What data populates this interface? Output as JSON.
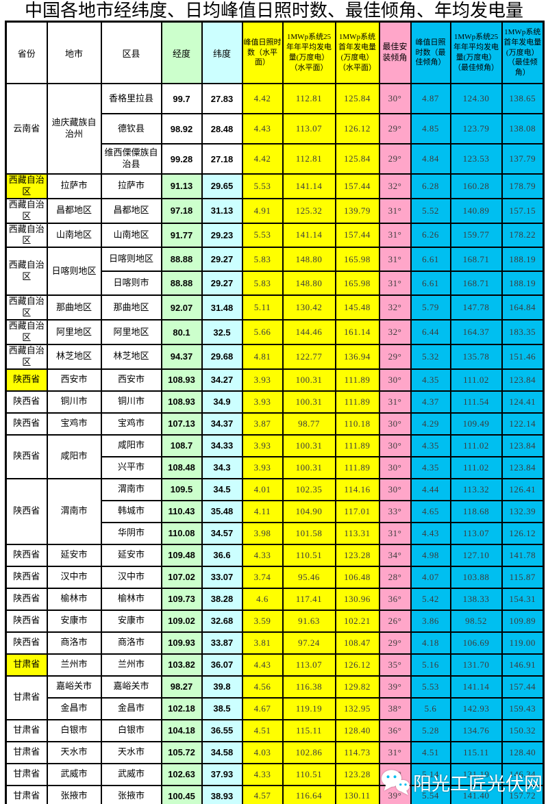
{
  "title": "中国各地市经纬度、日均峰值日照时数、最佳倾角、年均发电量",
  "watermark": {
    "text": "阳光工匠光伏网",
    "icon": "wechat-icon"
  },
  "colors": {
    "column_yellow": "#FFFF00",
    "longitude_green": "#CCFFCC",
    "latitude_cyan": "#CCFFFF",
    "tilt_pink": "#FFA6C9",
    "best_tilt_blue": "#00BFF0",
    "province_highlight": "#FFFF00",
    "border": "#000000"
  },
  "table": {
    "columns": [
      {
        "key": "province",
        "label": "省份",
        "bg": "#FFFFFF"
      },
      {
        "key": "city",
        "label": "地市",
        "bg": "#FFFFFF"
      },
      {
        "key": "county",
        "label": "区县",
        "bg": "#FFFFFF"
      },
      {
        "key": "lon",
        "label": "经度",
        "bg": "#CCFFCC"
      },
      {
        "key": "lat",
        "label": "纬度",
        "bg": "#CCFFFF"
      },
      {
        "key": "psh_h",
        "label": "峰值日照时数（水平面）",
        "bg": "#FFFF00"
      },
      {
        "key": "avg25_h",
        "label": "1MWp系统25年年平均发电量(万度电）（水平面）",
        "bg": "#FFFF00"
      },
      {
        "key": "first_h",
        "label": "1MWp系统首年发电量(万度电）（水平面）",
        "bg": "#FFFF00"
      },
      {
        "key": "tilt",
        "label": "最佳安装倾角",
        "bg": "#FFA6C9"
      },
      {
        "key": "psh_b",
        "label": "峰值日照时数（最佳倾角）",
        "bg": "#00BFF0"
      },
      {
        "key": "avg25_b",
        "label": "1MWp系统25年年平均发电量(万度电）（最佳倾角）",
        "bg": "#00BFF0"
      },
      {
        "key": "first_b",
        "label": "1MWp系统首年发电量(万度电）（最佳倾角）",
        "bg": "#00BFF0"
      }
    ],
    "rows": [
      {
        "province": {
          "text": "云南省",
          "span": 3
        },
        "city": {
          "text": "迪庆藏族自治州",
          "span": 3
        },
        "county": "香格里拉县",
        "lon": "99.7",
        "lat": "27.83",
        "geo_plain": true,
        "psh_h": "4.42",
        "avg25_h": "112.81",
        "first_h": "125.84",
        "tilt": "30°",
        "psh_b": "4.87",
        "avg25_b": "124.30",
        "first_b": "138.65"
      },
      {
        "county": "德钦县",
        "lon": "98.92",
        "lat": "28.48",
        "geo_plain": true,
        "psh_h": "4.43",
        "avg25_h": "113.07",
        "first_h": "126.12",
        "tilt": "29°",
        "psh_b": "4.85",
        "avg25_b": "123.79",
        "first_b": "138.08"
      },
      {
        "county": "维西傈僳族自治县",
        "lon": "99.28",
        "lat": "27.18",
        "geo_plain": true,
        "psh_h": "4.42",
        "avg25_h": "112.81",
        "first_h": "125.84",
        "tilt": "29°",
        "psh_b": "4.84",
        "avg25_b": "123.53",
        "first_b": "137.79"
      },
      {
        "province": {
          "text": "西藏自治区",
          "bg": "yellow"
        },
        "city": {
          "text": "拉萨市"
        },
        "county": "拉萨市",
        "lon": "91.13",
        "lat": "29.65",
        "psh_h": "5.53",
        "avg25_h": "141.14",
        "first_h": "157.44",
        "tilt": "32°",
        "psh_b": "6.28",
        "avg25_b": "160.28",
        "first_b": "178.79"
      },
      {
        "province": {
          "text": "西藏自治区"
        },
        "city": {
          "text": "昌都地区"
        },
        "county": "昌都地区",
        "lon": "97.18",
        "lat": "31.13",
        "psh_h": "4.91",
        "avg25_h": "125.32",
        "first_h": "139.79",
        "tilt": "31°",
        "psh_b": "5.52",
        "avg25_b": "140.89",
        "first_b": "157.15"
      },
      {
        "province": {
          "text": "西藏自治区"
        },
        "city": {
          "text": "山南地区"
        },
        "county": "山南地区",
        "lon": "91.77",
        "lat": "29.23",
        "psh_h": "5.53",
        "avg25_h": "141.14",
        "first_h": "157.44",
        "tilt": "31°",
        "psh_b": "6.26",
        "avg25_b": "159.77",
        "first_b": "178.22"
      },
      {
        "province": {
          "text": "西藏自治区",
          "span": 2
        },
        "city": {
          "text": "日喀则地区",
          "span": 2
        },
        "county": "日喀则地区",
        "lon": "88.88",
        "lat": "29.27",
        "psh_h": "5.83",
        "avg25_h": "148.80",
        "first_h": "165.98",
        "tilt": "31°",
        "psh_b": "6.61",
        "avg25_b": "168.71",
        "first_b": "188.19"
      },
      {
        "county": "日喀则市",
        "lon": "88.88",
        "lat": "29.27",
        "psh_h": "5.83",
        "avg25_h": "148.80",
        "first_h": "165.98",
        "tilt": "31°",
        "psh_b": "6.61",
        "avg25_b": "168.71",
        "first_b": "188.19"
      },
      {
        "province": {
          "text": "西藏自治区"
        },
        "city": {
          "text": "那曲地区"
        },
        "county": "那曲地区",
        "lon": "92.07",
        "lat": "31.48",
        "psh_h": "5.11",
        "avg25_h": "130.42",
        "first_h": "145.48",
        "tilt": "32°",
        "psh_b": "5.79",
        "avg25_b": "147.78",
        "first_b": "164.84"
      },
      {
        "province": {
          "text": "西藏自治区"
        },
        "city": {
          "text": "阿里地区"
        },
        "county": "阿里地区",
        "lon": "80.1",
        "lat": "32.5",
        "psh_h": "5.66",
        "avg25_h": "144.46",
        "first_h": "161.14",
        "tilt": "32°",
        "psh_b": "6.44",
        "avg25_b": "164.37",
        "first_b": "183.35"
      },
      {
        "province": {
          "text": "西藏自治区"
        },
        "city": {
          "text": "林芝地区"
        },
        "county": "林芝地区",
        "lon": "94.37",
        "lat": "29.68",
        "psh_h": "4.81",
        "avg25_h": "122.77",
        "first_h": "136.94",
        "tilt": "29°",
        "psh_b": "5.32",
        "avg25_b": "135.78",
        "first_b": "151.46"
      },
      {
        "province": {
          "text": "陕西省",
          "bg": "yellow"
        },
        "city": {
          "text": "西安市"
        },
        "county": "西安市",
        "lon": "108.93",
        "lat": "34.27",
        "psh_h": "3.93",
        "avg25_h": "100.31",
        "first_h": "111.89",
        "tilt": "30°",
        "psh_b": "4.35",
        "avg25_b": "111.02",
        "first_b": "123.84"
      },
      {
        "province": {
          "text": "陕西省"
        },
        "city": {
          "text": "铜川市"
        },
        "county": "铜川市",
        "lon": "108.93",
        "lat": "34.9",
        "psh_h": "3.93",
        "avg25_h": "100.31",
        "first_h": "111.89",
        "tilt": "31°",
        "psh_b": "4.37",
        "avg25_b": "111.54",
        "first_b": "124.41"
      },
      {
        "province": {
          "text": "陕西省"
        },
        "city": {
          "text": "宝鸡市"
        },
        "county": "宝鸡市",
        "lon": "107.13",
        "lat": "34.37",
        "psh_h": "3.87",
        "avg25_h": "98.77",
        "first_h": "110.18",
        "tilt": "30°",
        "psh_b": "4.29",
        "avg25_b": "109.49",
        "first_b": "122.14"
      },
      {
        "province": {
          "text": "陕西省",
          "span": 2
        },
        "city": {
          "text": "咸阳市",
          "span": 2
        },
        "county": "咸阳市",
        "lon": "108.7",
        "lat": "34.33",
        "psh_h": "3.93",
        "avg25_h": "100.31",
        "first_h": "111.89",
        "tilt": "30°",
        "psh_b": "4.35",
        "avg25_b": "111.02",
        "first_b": "123.84"
      },
      {
        "county": "兴平市",
        "lon": "108.48",
        "lat": "34.3",
        "psh_h": "3.93",
        "avg25_h": "100.31",
        "first_h": "111.89",
        "tilt": "30°",
        "psh_b": "4.35",
        "avg25_b": "111.02",
        "first_b": "123.84"
      },
      {
        "province": {
          "text": "陕西省",
          "span": 3
        },
        "city": {
          "text": "渭南市",
          "span": 3
        },
        "county": "渭南市",
        "lon": "109.5",
        "lat": "34.5",
        "psh_h": "4.01",
        "avg25_h": "102.35",
        "first_h": "114.16",
        "tilt": "30°",
        "psh_b": "4.44",
        "avg25_b": "113.32",
        "first_b": "126.41"
      },
      {
        "county": "韩城市",
        "lon": "110.43",
        "lat": "35.48",
        "psh_h": "4.11",
        "avg25_h": "104.90",
        "first_h": "117.01",
        "tilt": "33°",
        "psh_b": "4.65",
        "avg25_b": "118.68",
        "first_b": "132.39"
      },
      {
        "county": "华阴市",
        "lon": "110.08",
        "lat": "34.57",
        "psh_h": "3.98",
        "avg25_h": "101.58",
        "first_h": "113.31",
        "tilt": "31°",
        "psh_b": "4.43",
        "avg25_b": "113.07",
        "first_b": "126.12"
      },
      {
        "province": {
          "text": "陕西省"
        },
        "city": {
          "text": "延安市"
        },
        "county": "延安市",
        "lon": "109.48",
        "lat": "36.6",
        "psh_h": "4.33",
        "avg25_h": "110.51",
        "first_h": "123.28",
        "tilt": "34°",
        "psh_b": "4.98",
        "avg25_b": "127.10",
        "first_b": "141.78"
      },
      {
        "province": {
          "text": "陕西省"
        },
        "city": {
          "text": "汉中市"
        },
        "county": "汉中市",
        "lon": "107.02",
        "lat": "33.07",
        "psh_h": "3.74",
        "avg25_h": "95.46",
        "first_h": "106.48",
        "tilt": "28°",
        "psh_b": "4.07",
        "avg25_b": "103.88",
        "first_b": "115.87"
      },
      {
        "province": {
          "text": "陕西省"
        },
        "city": {
          "text": "榆林市"
        },
        "county": "榆林市",
        "lon": "109.73",
        "lat": "38.28",
        "psh_h": "4.6",
        "avg25_h": "117.41",
        "first_h": "130.96",
        "tilt": "36°",
        "psh_b": "5.42",
        "avg25_b": "138.33",
        "first_b": "154.31"
      },
      {
        "province": {
          "text": "陕西省"
        },
        "city": {
          "text": "安康市"
        },
        "county": "安康市",
        "lon": "109.02",
        "lat": "32.68",
        "psh_h": "3.59",
        "avg25_h": "91.63",
        "first_h": "102.21",
        "tilt": "26°",
        "psh_b": "3.86",
        "avg25_b": "98.52",
        "first_b": "109.89"
      },
      {
        "province": {
          "text": "陕西省"
        },
        "city": {
          "text": "商洛市"
        },
        "county": "商洛市",
        "lon": "109.93",
        "lat": "33.87",
        "psh_h": "3.81",
        "avg25_h": "97.24",
        "first_h": "108.47",
        "tilt": "29°",
        "psh_b": "4.18",
        "avg25_b": "106.69",
        "first_b": "119.00"
      },
      {
        "province": {
          "text": "甘肃省",
          "bg": "yellow"
        },
        "city": {
          "text": "兰州市"
        },
        "county": "兰州市",
        "lon": "103.82",
        "lat": "36.07",
        "psh_h": "4.43",
        "avg25_h": "113.07",
        "first_h": "126.12",
        "tilt": "35°",
        "psh_b": "5.16",
        "avg25_b": "131.70",
        "first_b": "146.91"
      },
      {
        "province": {
          "text": "甘肃省",
          "span": 2
        },
        "city": {
          "text": "嘉峪关市"
        },
        "county": "嘉峪关市",
        "lon": "98.27",
        "lat": "39.8",
        "psh_h": "4.56",
        "avg25_h": "116.38",
        "first_h": "129.82",
        "tilt": "39°",
        "psh_b": "5.53",
        "avg25_b": "141.14",
        "first_b": "157.44"
      },
      {
        "city": {
          "text": "金昌市"
        },
        "county": "金昌市",
        "lon": "102.18",
        "lat": "38.5",
        "psh_h": "4.67",
        "avg25_h": "119.19",
        "first_h": "132.95",
        "tilt": "38°",
        "psh_b": "5.6",
        "avg25_b": "142.93",
        "first_b": "159.43"
      },
      {
        "province": {
          "text": "甘肃省"
        },
        "city": {
          "text": "白银市"
        },
        "county": "白银市",
        "lon": "104.18",
        "lat": "36.55",
        "psh_h": "4.51",
        "avg25_h": "115.11",
        "first_h": "128.40",
        "tilt": "36°",
        "psh_b": "5.28",
        "avg25_b": "134.76",
        "first_b": "150.32"
      },
      {
        "province": {
          "text": "甘肃省"
        },
        "city": {
          "text": "天水市"
        },
        "county": "天水市",
        "lon": "105.72",
        "lat": "34.58",
        "psh_h": "4.03",
        "avg25_h": "102.86",
        "first_h": "114.73",
        "tilt": "31°",
        "psh_b": "4.51",
        "avg25_b": "115.11",
        "first_b": "128.40"
      },
      {
        "province": {
          "text": "甘肃省"
        },
        "city": {
          "text": "武威市"
        },
        "county": "武威市",
        "lon": "102.63",
        "lat": "37.93",
        "psh_h": "4.33",
        "avg25_h": "110.51",
        "first_h": "123.28",
        "tilt": "37°",
        "psh_b": "5.14",
        "avg25_b": "131.19",
        "first_b": "146.34"
      },
      {
        "province": {
          "text": "甘肃省"
        },
        "city": {
          "text": "张掖市"
        },
        "county": "张掖市",
        "lon": "100.45",
        "lat": "38.93",
        "psh_h": "4.57",
        "avg25_h": "116.64",
        "first_h": "130.11",
        "tilt": "39°",
        "psh_b": "5.54",
        "avg25_b": "141.40",
        "first_b": "157.72"
      }
    ]
  }
}
